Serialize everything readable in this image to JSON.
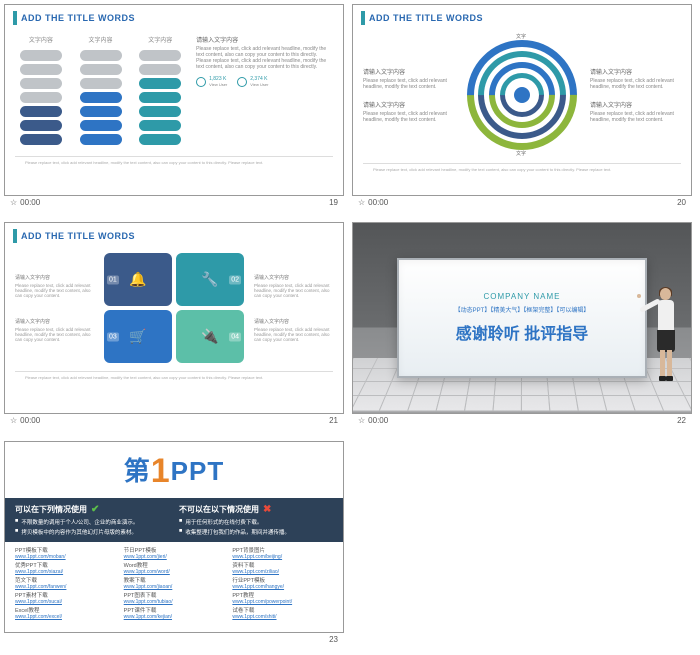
{
  "global": {
    "titleText": "ADD THE TITLE WORDS",
    "timecode": "00:00",
    "colors": {
      "blue_dark": "#3b5a8a",
      "blue": "#2e74c4",
      "teal": "#2e9aa8",
      "green": "#8db63c",
      "mint": "#5cbfa8",
      "gray": "#c0c4c8"
    }
  },
  "slide19": {
    "number": "19",
    "cols": [
      {
        "label": "文字内容",
        "gray": 4,
        "fill": 3,
        "color": "#3b5a8a"
      },
      {
        "label": "文字内容",
        "gray": 3,
        "fill": 4,
        "color": "#2e74c4"
      },
      {
        "label": "文字内容",
        "gray": 2,
        "fill": 5,
        "color": "#2e9aa8"
      }
    ],
    "rightTitle": "请输入文字内容",
    "rightText": "Please replace text, click add relevant headline, modify the text content, also can copy your content to this directly. Please replace text, click add relevant headline, modify the text content, also can copy your content to this directly.",
    "stat1": "1,823 K",
    "stat1sub": "View User",
    "stat2": "2,374 K",
    "stat2sub": "View User",
    "footer": "Please replace text, click add relevant headline, modify the text content, also can copy your content to this directly. Please replace text."
  },
  "slide20": {
    "number": "20",
    "items": [
      {
        "title": "请输入文字内容",
        "text": "Please replace text, click add relevant headline, modify the text content."
      },
      {
        "title": "请输入文字内容",
        "text": "Please replace text, click add relevant headline, modify the text content."
      },
      {
        "title": "请输入文字内容",
        "text": "Please replace text, click add relevant headline, modify the text content."
      },
      {
        "title": "请输入文字内容",
        "text": "Please replace text, click add relevant headline, modify the text content."
      }
    ],
    "labelTop": "文字",
    "labelBot": "文字",
    "footer": "Please replace text, click add relevant headline, modify the text content, also can copy your content to this directly. Please replace text."
  },
  "slide21": {
    "number": "21",
    "sideItems": [
      {
        "title": "请输入文字内容",
        "text": "Please replace text, click add relevant headline, modify the text content, also can copy your content."
      },
      {
        "title": "请输入文字内容",
        "text": "Please replace text, click add relevant headline, modify the text content, also can copy your content."
      },
      {
        "title": "请输入文字内容",
        "text": "Please replace text, click add relevant headline, modify the text content, also can copy your content."
      },
      {
        "title": "请输入文字内容",
        "text": "Please replace text, click add relevant headline, modify the text content, also can copy your content."
      }
    ],
    "tiles": [
      {
        "num": "01",
        "icon": "🔔",
        "color": "#3b5a8a"
      },
      {
        "num": "02",
        "icon": "🔧",
        "color": "#2e9aa8"
      },
      {
        "num": "03",
        "icon": "🛒",
        "color": "#2e74c4"
      },
      {
        "num": "04",
        "icon": "🔌",
        "color": "#5cbfa8"
      }
    ],
    "footer": "Please replace text, click add relevant headline, modify the text content, also can copy your content to this directly. Please replace text."
  },
  "slide22": {
    "number": "22",
    "company": "COMPANY NAME",
    "tags": "【动态PPT】【精美大气】【框架完整】【可以编辑】",
    "main": "感谢聆听 批评指导"
  },
  "slide23": {
    "number": "23",
    "logo_di": "第",
    "logo_1": "1",
    "logo_ppt": "PPT",
    "leftH": "可以在下列情况使用",
    "leftItems": [
      "不限数量的调用于个人/公司、企业的商业演示。",
      "拷贝模板中的内容作为其他幻灯片母版的素材。"
    ],
    "rightH": "不可以在以下情况使用",
    "rightItems": [
      "用于任何形式的在线付费下载。",
      "收集整理打包我们的作品，期间并通传播。"
    ],
    "linkCols": [
      {
        "h": "PPT模板下载",
        "url": "www.1ppt.com/moban/"
      },
      {
        "h": "节日PPT模板",
        "url": "www.1ppt.com/jieri/"
      },
      {
        "h": "PPT背景图片",
        "url": "www.1ppt.com/beijing/"
      },
      {
        "h": "优秀PPT下载",
        "url": "www.1ppt.com/xiazai/"
      },
      {
        "h": "Word教程",
        "url": "www.1ppt.com/word/"
      },
      {
        "h": "资料下载",
        "url": "www.1ppt.com/ziliao/"
      },
      {
        "h": "范文下载",
        "url": "www.1ppt.com/fanwen/"
      },
      {
        "h": "教案下载",
        "url": "www.1ppt.com/jiaoan/"
      },
      {
        "h": "行业PPT模板",
        "url": "www.1ppt.com/hangye/"
      },
      {
        "h": "PPT素材下载",
        "url": "www.1ppt.com/sucai/"
      },
      {
        "h": "PPT图表下载",
        "url": "www.1ppt.com/tubiao/"
      },
      {
        "h": "PPT教程",
        "url": "www.1ppt.com/powerpoint/"
      },
      {
        "h": "Excel教程",
        "url": "www.1ppt.com/excel/"
      },
      {
        "h": "PPT课件下载",
        "url": "www.1ppt.com/kejian/"
      },
      {
        "h": "试卷下载",
        "url": "www.1ppt.com/shiti/"
      }
    ]
  }
}
